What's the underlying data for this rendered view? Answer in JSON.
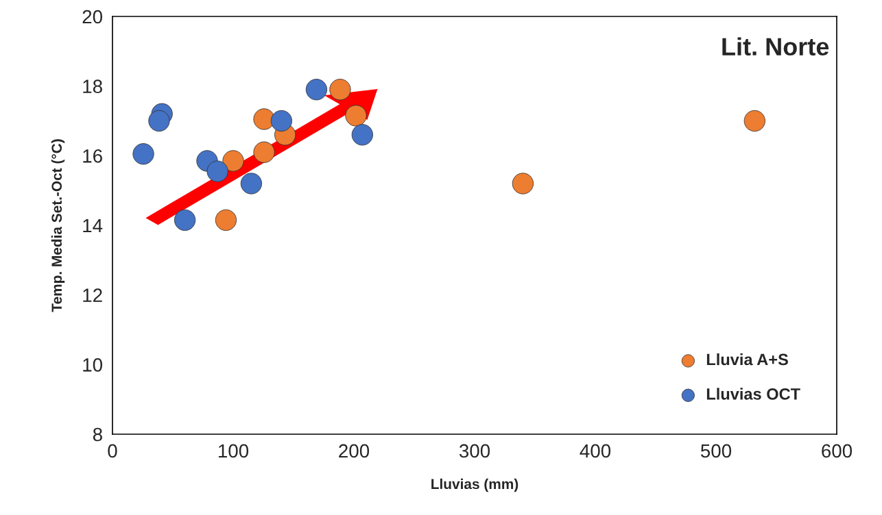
{
  "chart_data": {
    "type": "scatter",
    "title": "Lit. Norte",
    "xlabel": "Lluvias (mm)",
    "ylabel": "Temp. Media Set.-Oct (°C)",
    "series": [
      {
        "name": "Lluvia A+S",
        "color": "#ed7d31",
        "x": [
          188.6,
          201.7,
          125.6,
          143,
          125.6,
          100,
          94,
          340,
          532
        ],
        "values": [
          17.9,
          17.15,
          17.05,
          16.6,
          16.1,
          15.85,
          14.15,
          15.2,
          17.0
        ]
      },
      {
        "name": "Lluvias OCT",
        "color": "#4472c4",
        "x": [
          169,
          41,
          38.6,
          140,
          207,
          25.6,
          78.4,
          87,
          115,
          60
        ],
        "values": [
          17.9,
          17.2,
          17.0,
          17.0,
          16.6,
          16.05,
          15.85,
          15.55,
          15.2,
          14.15
        ]
      }
    ],
    "xlim": [
      0,
      600
    ],
    "ylim": [
      8,
      20
    ],
    "xticks": [
      0,
      100,
      200,
      300,
      400,
      500,
      600
    ],
    "yticks": [
      8,
      10,
      12,
      14,
      16,
      18,
      20
    ],
    "grid": false,
    "legend": "bottom right",
    "marker": "circle"
  }
}
